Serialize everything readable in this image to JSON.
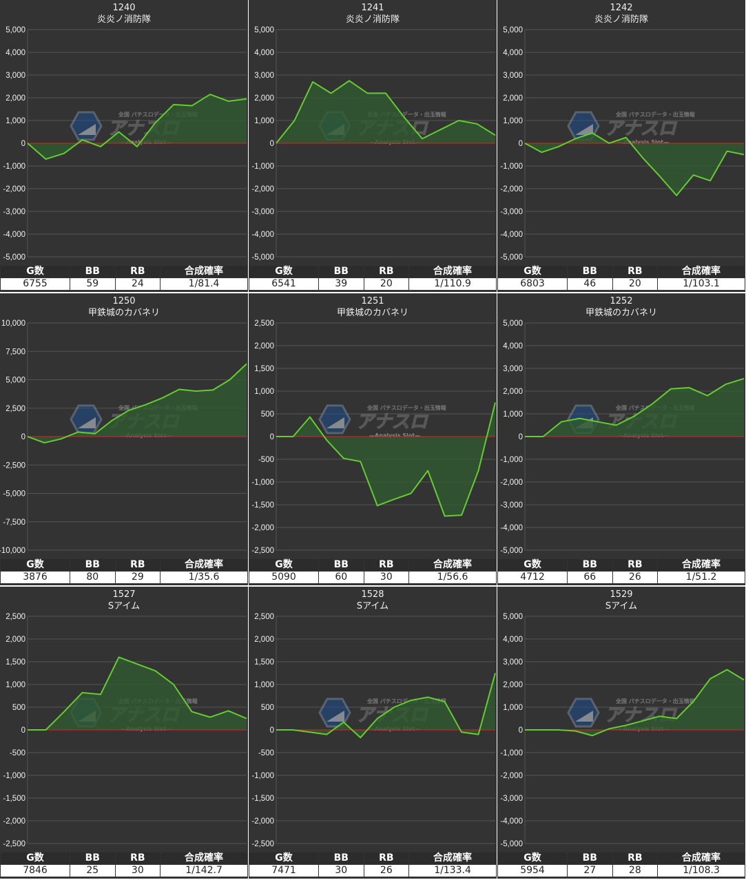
{
  "table_headers": {
    "g": "G数",
    "bb": "BB",
    "rb": "RB",
    "rate": "合成確率"
  },
  "watermark": {
    "top": "全国 パチスロデータ・出玉情報",
    "main": "アナスロ",
    "sub": "—Analysis Slot—"
  },
  "colors": {
    "background": "#333333",
    "grid": "#555555",
    "zero_line": "#e02020",
    "line": "#66cc33",
    "fill": "#2f5a2f"
  },
  "panels": [
    {
      "machine_no": "1240",
      "machine_name": "炎炎ノ消防隊",
      "stats": {
        "g": "6755",
        "bb": "59",
        "rb": "24",
        "rate": "1/81.4"
      }
    },
    {
      "machine_no": "1241",
      "machine_name": "炎炎ノ消防隊",
      "stats": {
        "g": "6541",
        "bb": "39",
        "rb": "20",
        "rate": "1/110.9"
      }
    },
    {
      "machine_no": "1242",
      "machine_name": "炎炎ノ消防隊",
      "stats": {
        "g": "6803",
        "bb": "46",
        "rb": "20",
        "rate": "1/103.1"
      }
    },
    {
      "machine_no": "1250",
      "machine_name": "甲鉄城のカバネリ",
      "stats": {
        "g": "3876",
        "bb": "80",
        "rb": "29",
        "rate": "1/35.6"
      }
    },
    {
      "machine_no": "1251",
      "machine_name": "甲鉄城のカバネリ",
      "stats": {
        "g": "5090",
        "bb": "60",
        "rb": "30",
        "rate": "1/56.6"
      }
    },
    {
      "machine_no": "1252",
      "machine_name": "甲鉄城のカバネリ",
      "stats": {
        "g": "4712",
        "bb": "66",
        "rb": "26",
        "rate": "1/51.2"
      }
    },
    {
      "machine_no": "1527",
      "machine_name": "Sアイム",
      "stats": {
        "g": "7846",
        "bb": "25",
        "rb": "30",
        "rate": "1/142.7"
      }
    },
    {
      "machine_no": "1528",
      "machine_name": "Sアイム",
      "stats": {
        "g": "7471",
        "bb": "30",
        "rb": "26",
        "rate": "1/133.4"
      }
    },
    {
      "machine_no": "1529",
      "machine_name": "Sアイム",
      "stats": {
        "g": "5954",
        "bb": "27",
        "rb": "28",
        "rate": "1/108.3"
      }
    }
  ],
  "chart_data": [
    {
      "type": "area",
      "title": "1240 炎炎ノ消防隊",
      "ylim": [
        -5000,
        5000
      ],
      "yticks": [
        "5,000",
        "4,000",
        "3,000",
        "2,000",
        "1,000",
        "0",
        "-1,000",
        "-2,000",
        "-3,000",
        "-4,000",
        "-5,000"
      ],
      "ytick_values": [
        5000,
        4000,
        3000,
        2000,
        1000,
        0,
        -1000,
        -2000,
        -3000,
        -4000,
        -5000
      ],
      "grid": true,
      "values": [
        0,
        -700,
        -450,
        150,
        -150,
        500,
        -150,
        900,
        1700,
        1650,
        2150,
        1850,
        1950
      ]
    },
    {
      "type": "area",
      "title": "1241 炎炎ノ消防隊",
      "ylim": [
        -5000,
        5000
      ],
      "yticks": [
        "5,000",
        "4,000",
        "3,000",
        "2,000",
        "1,000",
        "0",
        "-1,000",
        "-2,000",
        "-3,000",
        "-4,000",
        "-5,000"
      ],
      "ytick_values": [
        5000,
        4000,
        3000,
        2000,
        1000,
        0,
        -1000,
        -2000,
        -3000,
        -4000,
        -5000
      ],
      "grid": true,
      "values": [
        0,
        1000,
        2700,
        2200,
        2750,
        2200,
        2200,
        1150,
        200,
        600,
        1000,
        850,
        350
      ]
    },
    {
      "type": "area",
      "title": "1242 炎炎ノ消防隊",
      "ylim": [
        -5000,
        5000
      ],
      "yticks": [
        "5,000",
        "4,000",
        "3,000",
        "2,000",
        "1,000",
        "0",
        "-1,000",
        "-2,000",
        "-3,000",
        "-4,000",
        "-5,000"
      ],
      "ytick_values": [
        5000,
        4000,
        3000,
        2000,
        1000,
        0,
        -1000,
        -2000,
        -3000,
        -4000,
        -5000
      ],
      "grid": true,
      "values": [
        0,
        -400,
        -150,
        200,
        450,
        0,
        250,
        -650,
        -1450,
        -2300,
        -1400,
        -1650,
        -350,
        -500
      ]
    },
    {
      "type": "area",
      "title": "1250 甲鉄城のカバネリ",
      "ylim": [
        -10000,
        10000
      ],
      "yticks": [
        "10,000",
        "7,500",
        "5,000",
        "2,500",
        "0",
        "-2,500",
        "-5,000",
        "-7,500",
        "-10,000"
      ],
      "ytick_values": [
        10000,
        7500,
        5000,
        2500,
        0,
        -2500,
        -5000,
        -7500,
        -10000
      ],
      "grid": true,
      "values": [
        0,
        -550,
        -200,
        400,
        250,
        1400,
        2300,
        2800,
        3400,
        4150,
        4000,
        4100,
        5000,
        6400
      ]
    },
    {
      "type": "area",
      "title": "1251 甲鉄城のカバネリ",
      "ylim": [
        -2500,
        2500
      ],
      "yticks": [
        "2,500",
        "2,000",
        "1,500",
        "1,000",
        "500",
        "0",
        "-500",
        "-1,000",
        "-1,500",
        "-2,000",
        "-2,500"
      ],
      "ytick_values": [
        2500,
        2000,
        1500,
        1000,
        500,
        0,
        -500,
        -1000,
        -1500,
        -2000,
        -2500
      ],
      "grid": true,
      "values": [
        0,
        0,
        430,
        -80,
        -480,
        -550,
        -1520,
        -1380,
        -1250,
        -750,
        -1750,
        -1730,
        -750,
        750
      ]
    },
    {
      "type": "area",
      "title": "1252 甲鉄城のカバネリ",
      "ylim": [
        -5000,
        5000
      ],
      "yticks": [
        "5,000",
        "4,000",
        "3,000",
        "2,000",
        "1,000",
        "0",
        "-1,000",
        "-2,000",
        "-3,000",
        "-4,000",
        "-5,000"
      ],
      "ytick_values": [
        5000,
        4000,
        3000,
        2000,
        1000,
        0,
        -1000,
        -2000,
        -3000,
        -4000,
        -5000
      ],
      "grid": true,
      "values": [
        0,
        0,
        650,
        800,
        650,
        500,
        900,
        1450,
        2100,
        2150,
        1800,
        2300,
        2550
      ]
    },
    {
      "type": "area",
      "title": "1527 Sアイム",
      "ylim": [
        -2500,
        2500
      ],
      "yticks": [
        "2,500",
        "2,000",
        "1,500",
        "1,000",
        "500",
        "0",
        "-500",
        "-1,000",
        "-1,500",
        "-2,000",
        "-2,500"
      ],
      "ytick_values": [
        2500,
        2000,
        1500,
        1000,
        500,
        0,
        -500,
        -1000,
        -1500,
        -2000,
        -2500
      ],
      "grid": true,
      "values": [
        0,
        0,
        400,
        820,
        780,
        1600,
        1450,
        1300,
        1000,
        400,
        280,
        420,
        250
      ]
    },
    {
      "type": "area",
      "title": "1528 Sアイム",
      "ylim": [
        -2500,
        2500
      ],
      "yticks": [
        "2,500",
        "2,000",
        "1,500",
        "1,000",
        "500",
        "0",
        "-500",
        "-1,000",
        "-1,500",
        "-2,000",
        "-2,500"
      ],
      "ytick_values": [
        2500,
        2000,
        1500,
        1000,
        500,
        0,
        -500,
        -1000,
        -1500,
        -2000,
        -2500
      ],
      "grid": true,
      "values": [
        0,
        0,
        -50,
        -100,
        170,
        -170,
        250,
        500,
        650,
        720,
        620,
        -50,
        -100,
        1250
      ]
    },
    {
      "type": "area",
      "title": "1529 Sアイム",
      "ylim": [
        -5000,
        5000
      ],
      "yticks": [
        "5,000",
        "4,000",
        "3,000",
        "2,000",
        "1,000",
        "0",
        "-1,000",
        "-2,000",
        "-3,000",
        "-4,000",
        "-5,000"
      ],
      "ytick_values": [
        5000,
        4000,
        3000,
        2000,
        1000,
        0,
        -1000,
        -2000,
        -3000,
        -4000,
        -5000
      ],
      "grid": true,
      "values": [
        0,
        0,
        0,
        -50,
        -250,
        50,
        200,
        400,
        600,
        500,
        1250,
        2250,
        2650,
        2200
      ]
    }
  ]
}
